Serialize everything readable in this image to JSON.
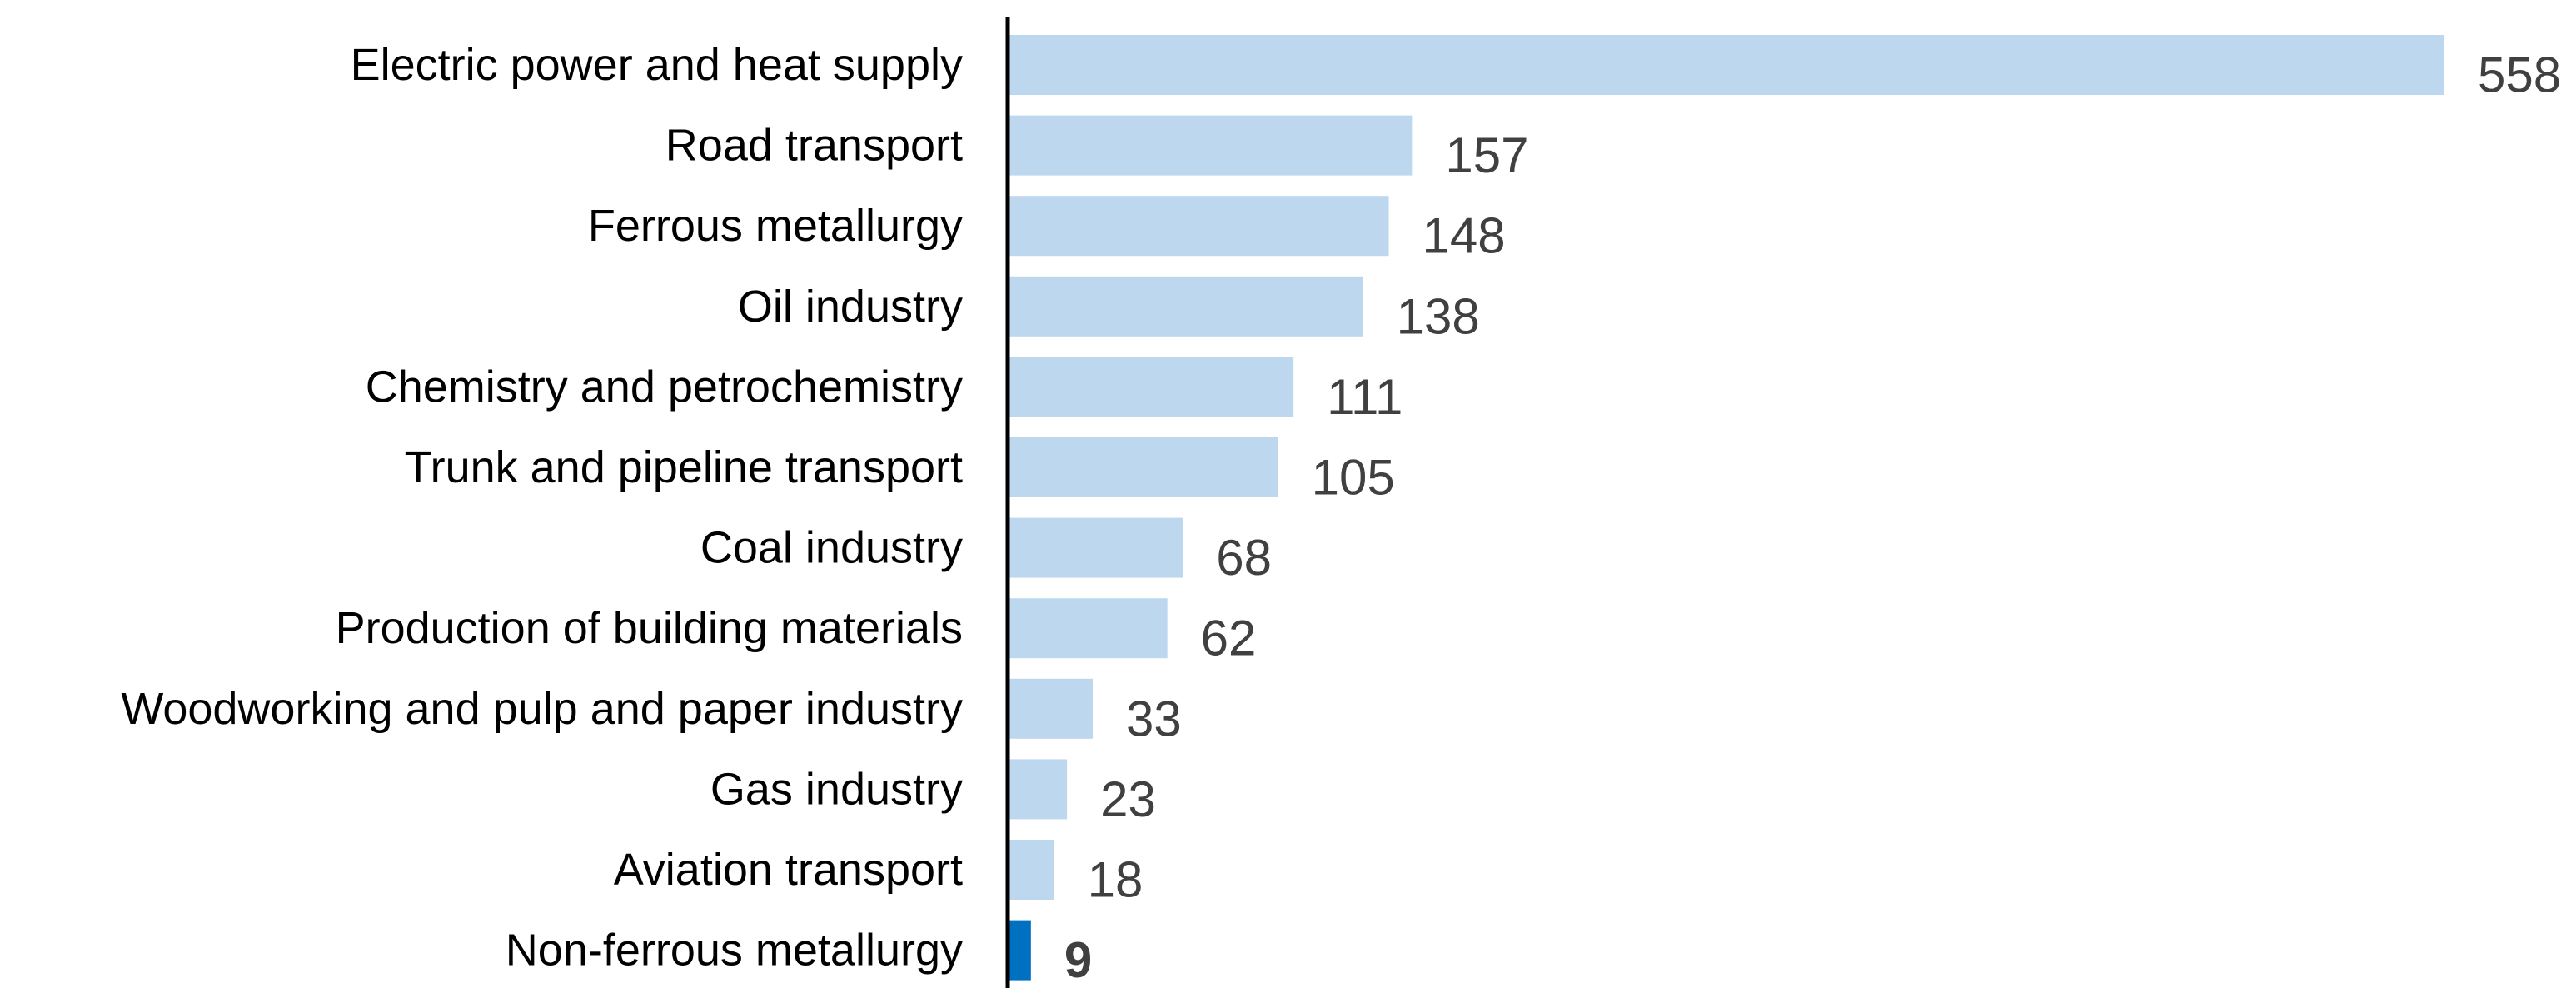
{
  "chart_data": {
    "type": "bar",
    "orientation": "horizontal",
    "title": "",
    "xlabel": "",
    "ylabel": "",
    "grid": false,
    "legend": "none",
    "categories": [
      "Electric power and heat supply",
      "Road transport",
      "Ferrous metallurgy",
      "Oil industry",
      "Chemistry and petrochemistry",
      "Trunk and pipeline transport",
      "Coal industry",
      "Production of building materials",
      "Woodworking and pulp and paper industry",
      "Gas industry",
      "Aviation transport",
      "Non-ferrous metallurgy"
    ],
    "values": [
      558,
      157,
      148,
      138,
      111,
      105,
      68,
      62,
      33,
      23,
      18,
      9
    ],
    "value_labels": [
      "558",
      "157",
      "148",
      "138",
      "111",
      "105",
      "68",
      "62",
      "33",
      "23",
      "18",
      "9"
    ],
    "highlight_category": "Non-ferrous metallurgy",
    "xlim": [
      0,
      558
    ],
    "colors": {
      "bar": "#BDD7EE",
      "highlight_bar": "#0070C0",
      "axis": "#000000",
      "value_text": "#404040",
      "label_text": "#000000"
    }
  }
}
